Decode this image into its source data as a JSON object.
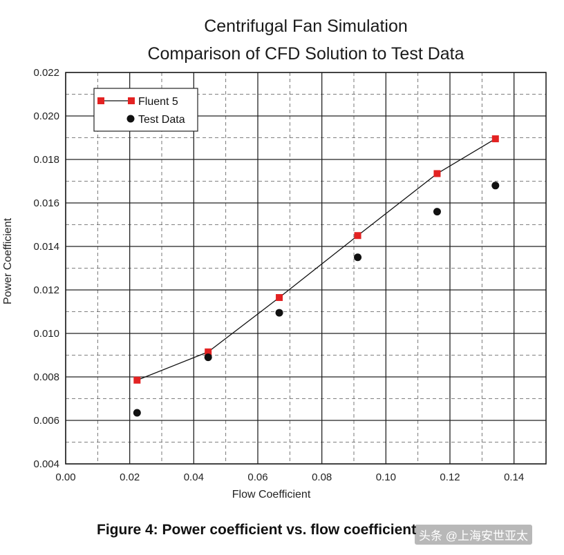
{
  "chart_data": {
    "type": "scatter",
    "title": "Centrifugal Fan Simulation",
    "subtitle": "Comparison of CFD Solution to Test Data",
    "xlabel": "Flow Coefficient",
    "ylabel": "Power Coefficient",
    "xlim": [
      0.0,
      0.15
    ],
    "ylim": [
      0.004,
      0.022
    ],
    "x_ticks": [
      "0.00",
      "0.02",
      "0.04",
      "0.06",
      "0.08",
      "0.10",
      "0.12",
      "0.14"
    ],
    "y_ticks": [
      "0.004",
      "0.006",
      "0.008",
      "0.010",
      "0.012",
      "0.014",
      "0.016",
      "0.018",
      "0.020",
      "0.022"
    ],
    "grid": true,
    "legend_position": "top-left",
    "series": [
      {
        "name": "Fluent 5",
        "style": "line-with-square-markers",
        "color": "#e32222",
        "x": [
          0.0223,
          0.0445,
          0.0667,
          0.0912,
          0.116,
          0.1342
        ],
        "y": [
          0.00785,
          0.00915,
          0.01165,
          0.0145,
          0.01735,
          0.01895
        ]
      },
      {
        "name": "Test Data",
        "style": "circle-markers",
        "color": "#111111",
        "x": [
          0.0223,
          0.0445,
          0.0667,
          0.0912,
          0.116,
          0.1342
        ],
        "y": [
          0.00635,
          0.0089,
          0.01095,
          0.0135,
          0.0156,
          0.0168
        ]
      }
    ]
  },
  "caption": "Figure 4:  Power coefficient vs. flow coefficient",
  "watermark": "头条 @上海安世亚太"
}
